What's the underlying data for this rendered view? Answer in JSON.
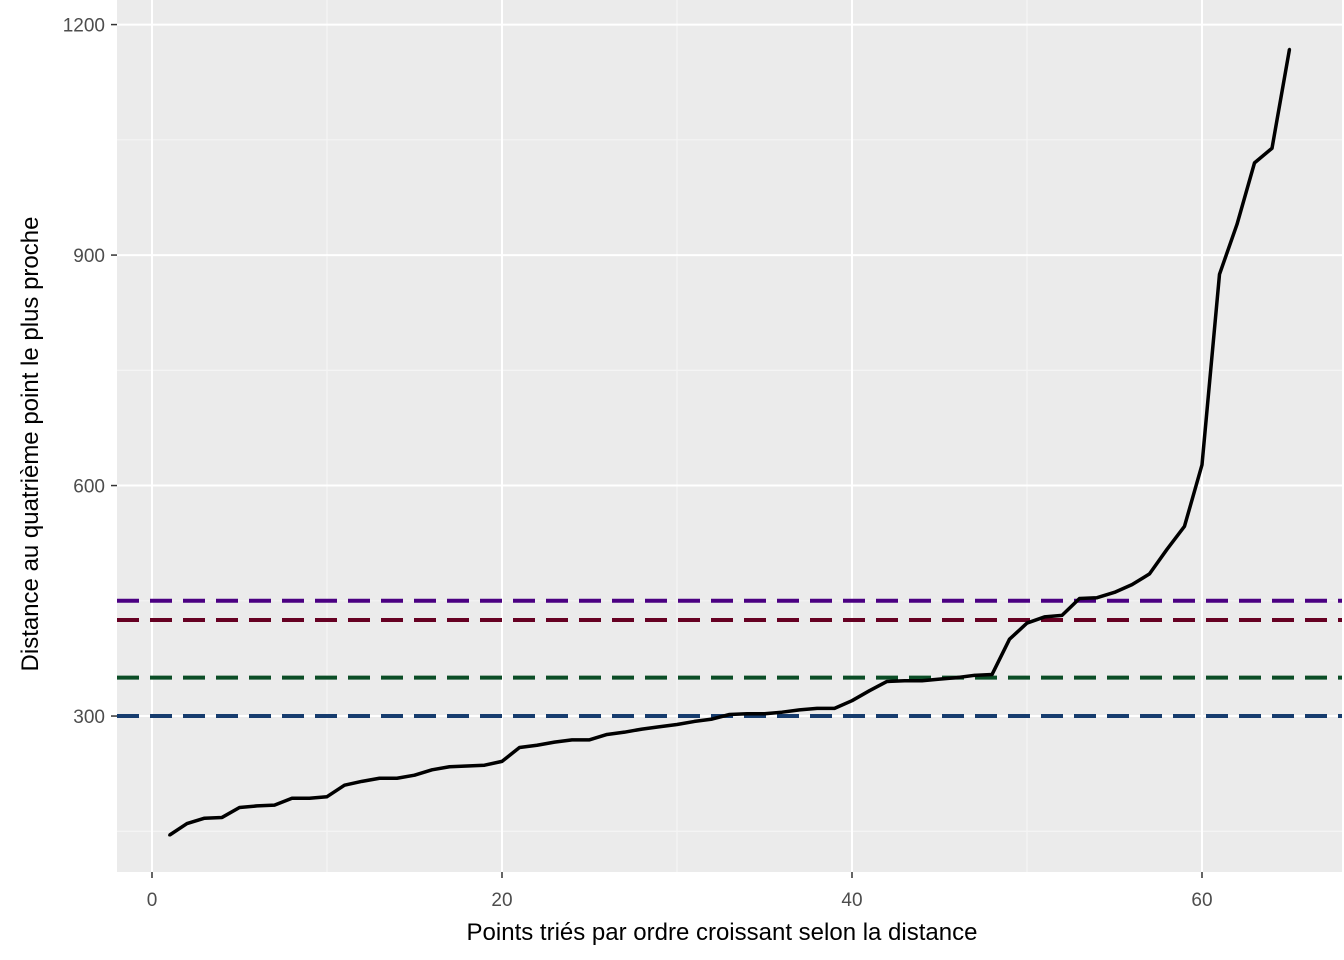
{
  "chart_data": {
    "type": "line",
    "title": "",
    "xlabel": "Points triés par ordre croissant selon la distance",
    "ylabel": "Distance au quatrième point le plus proche",
    "xlim": [
      -2,
      68
    ],
    "ylim": [
      97,
      1232
    ],
    "x_ticks": [
      0,
      20,
      40,
      60
    ],
    "x_tick_labels": [
      "0",
      "20",
      "40",
      "60"
    ],
    "y_ticks": [
      300,
      600,
      900,
      1200
    ],
    "y_tick_labels": [
      "300",
      "600",
      "900",
      "1200"
    ],
    "grid": true,
    "legend": "none",
    "series": [
      {
        "color": "#000000",
        "x": [
          1,
          2,
          3,
          4,
          5,
          6,
          7,
          8,
          9,
          10,
          11,
          12,
          13,
          14,
          15,
          16,
          17,
          18,
          19,
          20,
          21,
          22,
          23,
          24,
          25,
          26,
          27,
          28,
          29,
          30,
          31,
          32,
          33,
          34,
          35,
          36,
          37,
          38,
          39,
          40,
          41,
          42,
          43,
          44,
          45,
          46,
          47,
          48,
          49,
          50,
          51,
          52,
          53,
          54,
          55,
          56,
          57,
          58,
          59,
          60,
          61,
          62,
          63,
          64,
          65
        ],
        "y": [
          145,
          160,
          167,
          168,
          181,
          183,
          184,
          193,
          193,
          195,
          210,
          215,
          219,
          219,
          223,
          230,
          234,
          235,
          236,
          241,
          259,
          262,
          266,
          269,
          269,
          276,
          279,
          283,
          286,
          289,
          293,
          296,
          302,
          303,
          303,
          305,
          308,
          310,
          310,
          320,
          333,
          345,
          346,
          346,
          348,
          350,
          353,
          354,
          400,
          421,
          429,
          431,
          453,
          454,
          461,
          471,
          485,
          517,
          547,
          627,
          875,
          940,
          1020,
          1039,
          1168
        ]
      }
    ],
    "hlines": [
      {
        "y": 450,
        "color": "#4b0082",
        "style": "dashed"
      },
      {
        "y": 425,
        "color": "#660022",
        "style": "dashed"
      },
      {
        "y": 350,
        "color": "#0b4d26",
        "style": "dashed"
      },
      {
        "y": 300,
        "color": "#163c6e",
        "style": "dashed"
      }
    ]
  },
  "colors": {
    "panel_background": "#ebebeb",
    "grid_major": "#ffffff",
    "grid_minor": "#f5f5f5"
  }
}
